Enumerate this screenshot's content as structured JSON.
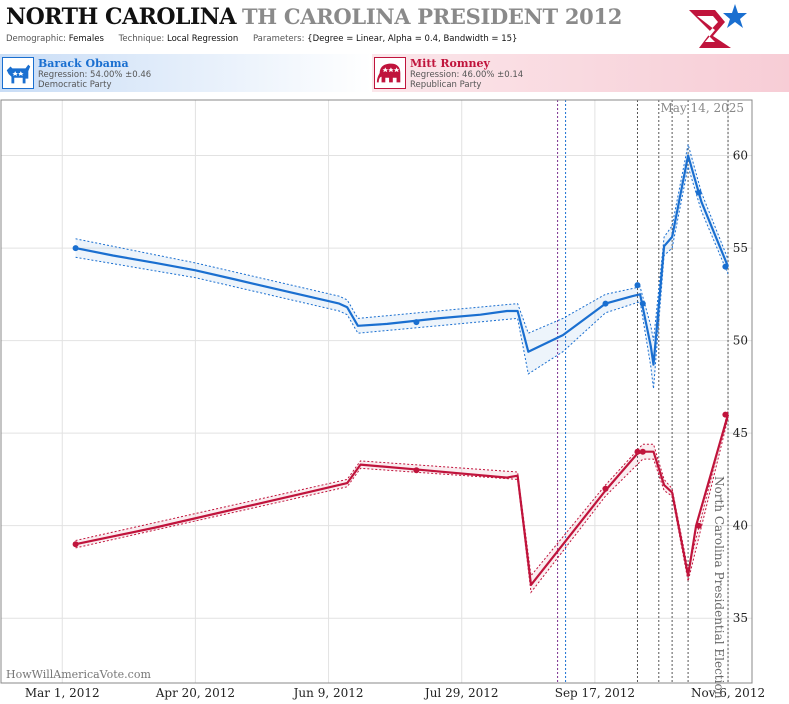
{
  "header": {
    "title": "NORTH CAROLINA",
    "subtitle": "TH CAROLINA PRESIDENT 2012",
    "demographic_label": "Demographic:",
    "demographic_value": "Females",
    "technique_label": "Technique:",
    "technique_value": "Local Regression",
    "parameters_label": "Parameters:",
    "parameters_value": "{Degree = Linear, Alpha = 0.4, Bandwidth = 15}"
  },
  "candidates": {
    "democrat": {
      "name": "Barack Obama",
      "regression": "Regression: 54.00% ±0.46",
      "party": "Democratic Party",
      "color": "#1a6fd0"
    },
    "republican": {
      "name": "Mitt Romney",
      "regression": "Regression: 46.00% ±0.14",
      "party": "Republican Party",
      "color": "#c0143c"
    }
  },
  "chart_data": {
    "type": "line",
    "date_label": "May 14, 2025",
    "watermark": "HowWillAmericaVote.com",
    "event_label": "North Carolina Presidential Election",
    "x_ticks": [
      "Mar 1, 2012",
      "Apr 20, 2012",
      "Jun 9, 2012",
      "Jul 29, 2012",
      "Sep 17, 2012",
      "Nov 6, 2012"
    ],
    "x_tick_dates": [
      "2012-03-01",
      "2012-04-20",
      "2012-06-09",
      "2012-07-29",
      "2012-09-17",
      "2012-11-06"
    ],
    "x_range": [
      "2012-02-07",
      "2012-11-15"
    ],
    "ylim": [
      31.5,
      63
    ],
    "y_ticks": [
      35,
      40,
      45,
      50,
      55,
      60
    ],
    "grid": true,
    "event_lines": [
      {
        "date": "2012-09-03",
        "color": "#7b2d8e"
      },
      {
        "date": "2012-09-06",
        "color": "#1a6fd0"
      },
      {
        "date": "2012-10-03",
        "color": "#555555"
      },
      {
        "date": "2012-10-11",
        "color": "#555555"
      },
      {
        "date": "2012-10-16",
        "color": "#555555"
      },
      {
        "date": "2012-10-22",
        "color": "#555555"
      },
      {
        "date": "2012-11-06",
        "color": "#555555"
      }
    ],
    "series": [
      {
        "name": "Barack Obama",
        "color": "#1a6fd0",
        "band": "#1a6fd0",
        "line": [
          [
            "2012-03-06",
            55.0
          ],
          [
            "2012-03-20",
            54.6
          ],
          [
            "2012-04-05",
            54.2
          ],
          [
            "2012-04-20",
            53.8
          ],
          [
            "2012-05-05",
            53.3
          ],
          [
            "2012-05-20",
            52.8
          ],
          [
            "2012-06-01",
            52.4
          ],
          [
            "2012-06-13",
            52.0
          ],
          [
            "2012-06-16",
            51.8
          ],
          [
            "2012-06-20",
            50.8
          ],
          [
            "2012-07-01",
            50.9
          ],
          [
            "2012-07-20",
            51.2
          ],
          [
            "2012-08-05",
            51.4
          ],
          [
            "2012-08-15",
            51.6
          ],
          [
            "2012-08-19",
            51.6
          ],
          [
            "2012-08-23",
            49.4
          ],
          [
            "2012-09-05",
            50.3
          ],
          [
            "2012-09-21",
            52.0
          ],
          [
            "2012-10-01",
            52.4
          ],
          [
            "2012-10-04",
            52.5
          ],
          [
            "2012-10-08",
            49.7
          ],
          [
            "2012-10-09",
            48.7
          ],
          [
            "2012-10-13",
            55.1
          ],
          [
            "2012-10-16",
            55.6
          ],
          [
            "2012-10-22",
            60.0
          ],
          [
            "2012-10-27",
            57.5
          ],
          [
            "2012-11-06",
            54.0
          ]
        ],
        "upper": [
          [
            "2012-03-06",
            55.5
          ],
          [
            "2012-04-20",
            54.2
          ],
          [
            "2012-06-13",
            52.4
          ],
          [
            "2012-06-16",
            52.2
          ],
          [
            "2012-06-20",
            51.2
          ],
          [
            "2012-08-19",
            52.0
          ],
          [
            "2012-08-23",
            50.4
          ],
          [
            "2012-09-05",
            51.2
          ],
          [
            "2012-09-21",
            52.5
          ],
          [
            "2012-10-04",
            52.9
          ],
          [
            "2012-10-08",
            50.8
          ],
          [
            "2012-10-09",
            50.0
          ],
          [
            "2012-10-13",
            55.6
          ],
          [
            "2012-10-16",
            56.2
          ],
          [
            "2012-10-22",
            60.6
          ],
          [
            "2012-10-27",
            58.0
          ],
          [
            "2012-11-06",
            54.4
          ]
        ],
        "lower": [
          [
            "2012-03-06",
            54.5
          ],
          [
            "2012-04-20",
            53.4
          ],
          [
            "2012-06-13",
            51.6
          ],
          [
            "2012-06-16",
            51.4
          ],
          [
            "2012-06-20",
            50.4
          ],
          [
            "2012-08-19",
            51.2
          ],
          [
            "2012-08-23",
            48.2
          ],
          [
            "2012-09-05",
            49.4
          ],
          [
            "2012-09-21",
            51.5
          ],
          [
            "2012-10-04",
            52.1
          ],
          [
            "2012-10-08",
            48.6
          ],
          [
            "2012-10-09",
            47.4
          ],
          [
            "2012-10-13",
            54.6
          ],
          [
            "2012-10-16",
            55.0
          ],
          [
            "2012-10-22",
            59.4
          ],
          [
            "2012-10-27",
            57.0
          ],
          [
            "2012-11-06",
            53.6
          ]
        ],
        "points": [
          [
            "2012-03-06",
            55.0
          ],
          [
            "2012-07-12",
            51.0
          ],
          [
            "2012-09-21",
            52.0
          ],
          [
            "2012-10-03",
            53.0
          ],
          [
            "2012-10-05",
            52.0
          ],
          [
            "2012-10-26",
            58.0
          ],
          [
            "2012-11-05",
            54.0
          ]
        ]
      },
      {
        "name": "Mitt Romney",
        "color": "#c0143c",
        "band": "#c0143c",
        "line": [
          [
            "2012-03-06",
            39.0
          ],
          [
            "2012-04-05",
            39.9
          ],
          [
            "2012-05-05",
            40.9
          ],
          [
            "2012-06-01",
            41.8
          ],
          [
            "2012-06-16",
            42.3
          ],
          [
            "2012-06-21",
            43.3
          ],
          [
            "2012-07-15",
            43.0
          ],
          [
            "2012-08-15",
            42.6
          ],
          [
            "2012-08-19",
            42.7
          ],
          [
            "2012-08-24",
            36.8
          ],
          [
            "2012-09-21",
            41.9
          ],
          [
            "2012-10-03",
            43.9
          ],
          [
            "2012-10-05",
            44.0
          ],
          [
            "2012-10-09",
            44.0
          ],
          [
            "2012-10-13",
            42.2
          ],
          [
            "2012-10-16",
            41.8
          ],
          [
            "2012-10-22",
            37.3
          ],
          [
            "2012-10-25",
            40.0
          ],
          [
            "2012-11-06",
            46.0
          ]
        ],
        "upper": [
          [
            "2012-03-06",
            39.2
          ],
          [
            "2012-06-16",
            42.5
          ],
          [
            "2012-06-21",
            43.5
          ],
          [
            "2012-08-19",
            42.9
          ],
          [
            "2012-08-24",
            37.3
          ],
          [
            "2012-09-21",
            42.2
          ],
          [
            "2012-10-05",
            44.4
          ],
          [
            "2012-10-09",
            44.4
          ],
          [
            "2012-10-13",
            42.5
          ],
          [
            "2012-10-16",
            42.0
          ],
          [
            "2012-10-22",
            37.6
          ],
          [
            "2012-11-06",
            46.2
          ]
        ],
        "lower": [
          [
            "2012-03-06",
            38.8
          ],
          [
            "2012-06-16",
            42.1
          ],
          [
            "2012-06-21",
            43.1
          ],
          [
            "2012-08-19",
            42.5
          ],
          [
            "2012-08-24",
            36.4
          ],
          [
            "2012-09-21",
            41.6
          ],
          [
            "2012-10-05",
            43.6
          ],
          [
            "2012-10-09",
            43.6
          ],
          [
            "2012-10-13",
            41.9
          ],
          [
            "2012-10-16",
            41.6
          ],
          [
            "2012-10-22",
            37.0
          ],
          [
            "2012-11-06",
            45.8
          ]
        ],
        "points": [
          [
            "2012-03-06",
            39.0
          ],
          [
            "2012-07-12",
            43.0
          ],
          [
            "2012-09-21",
            42.0
          ],
          [
            "2012-10-03",
            44.0
          ],
          [
            "2012-10-05",
            44.0
          ],
          [
            "2012-10-26",
            40.0
          ],
          [
            "2012-11-05",
            46.0
          ]
        ]
      }
    ]
  }
}
